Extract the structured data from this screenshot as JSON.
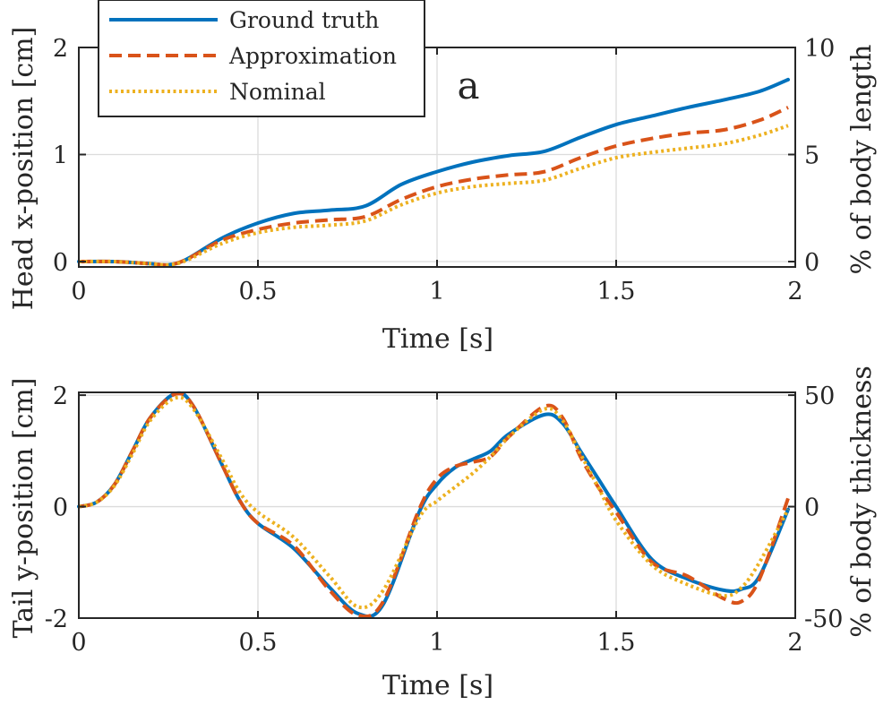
{
  "chart_data": [
    {
      "type": "line",
      "panel_label": "a",
      "xlabel": "Time [s]",
      "ylabel": "Head x-position [cm]",
      "ylabel_right": "% of body length",
      "xlim": [
        0,
        2
      ],
      "ylim": [
        -0.05,
        2
      ],
      "ylim_right": [
        -0.25,
        10
      ],
      "xticks": [
        0,
        0.5,
        1,
        1.5,
        2
      ],
      "xtick_labels": [
        "0",
        "0.5",
        "1",
        "1.5",
        "2"
      ],
      "yticks": [
        0,
        1,
        2
      ],
      "ytick_labels": [
        "0",
        "1",
        "2"
      ],
      "yticks_right": [
        0,
        5,
        10
      ],
      "ytick_labels_right": [
        "0",
        "5",
        "10"
      ],
      "grid": true,
      "legend": {
        "location": "top-left",
        "entries": [
          "Ground truth",
          "Approximation",
          "Nominal"
        ]
      },
      "series": [
        {
          "name": "Ground truth",
          "color": "#0072BD",
          "style": "solid",
          "x": [
            0,
            0.1,
            0.2,
            0.25,
            0.3,
            0.4,
            0.5,
            0.6,
            0.7,
            0.8,
            0.9,
            1.0,
            1.1,
            1.2,
            1.3,
            1.4,
            1.5,
            1.6,
            1.7,
            1.8,
            1.9,
            1.98
          ],
          "y": [
            0,
            0,
            -0.02,
            -0.03,
            0.02,
            0.22,
            0.36,
            0.45,
            0.48,
            0.52,
            0.72,
            0.84,
            0.93,
            0.99,
            1.03,
            1.16,
            1.28,
            1.36,
            1.44,
            1.51,
            1.59,
            1.7
          ]
        },
        {
          "name": "Approximation",
          "color": "#D95319",
          "style": "dashed",
          "x": [
            0,
            0.1,
            0.2,
            0.25,
            0.3,
            0.4,
            0.5,
            0.6,
            0.7,
            0.8,
            0.9,
            1.0,
            1.1,
            1.2,
            1.3,
            1.4,
            1.5,
            1.6,
            1.7,
            1.8,
            1.9,
            1.98
          ],
          "y": [
            0,
            0,
            -0.02,
            -0.03,
            0.02,
            0.2,
            0.3,
            0.36,
            0.39,
            0.42,
            0.58,
            0.7,
            0.77,
            0.81,
            0.84,
            0.97,
            1.08,
            1.15,
            1.2,
            1.23,
            1.32,
            1.44
          ]
        },
        {
          "name": "Nominal",
          "color": "#EDB120",
          "style": "dotted",
          "x": [
            0,
            0.1,
            0.2,
            0.25,
            0.3,
            0.4,
            0.5,
            0.6,
            0.7,
            0.8,
            0.9,
            1.0,
            1.1,
            1.2,
            1.3,
            1.4,
            1.5,
            1.6,
            1.7,
            1.8,
            1.9,
            1.98
          ],
          "y": [
            0,
            0,
            -0.02,
            -0.03,
            0.01,
            0.17,
            0.27,
            0.32,
            0.34,
            0.38,
            0.53,
            0.64,
            0.7,
            0.73,
            0.76,
            0.87,
            0.97,
            1.02,
            1.06,
            1.1,
            1.18,
            1.27
          ]
        }
      ]
    },
    {
      "type": "line",
      "xlabel": "Time [s]",
      "ylabel": "Tail y-position [cm]",
      "ylabel_right": "% of body thickness",
      "xlim": [
        0,
        2
      ],
      "ylim": [
        -2,
        2.05
      ],
      "ylim_right": [
        -50,
        51.25
      ],
      "xticks": [
        0,
        0.5,
        1,
        1.5,
        2
      ],
      "xtick_labels": [
        "0",
        "0.5",
        "1",
        "1.5",
        "2"
      ],
      "yticks": [
        -2,
        0,
        2
      ],
      "ytick_labels": [
        "-2",
        "0",
        "2"
      ],
      "yticks_right": [
        -50,
        0,
        50
      ],
      "ytick_labels_right": [
        "-50",
        "0",
        "50"
      ],
      "grid": true,
      "series": [
        {
          "name": "Ground truth",
          "color": "#0072BD",
          "style": "solid",
          "x": [
            0,
            0.05,
            0.1,
            0.15,
            0.2,
            0.27,
            0.32,
            0.4,
            0.45,
            0.5,
            0.6,
            0.7,
            0.78,
            0.85,
            0.95,
            1.0,
            1.05,
            1.1,
            1.15,
            1.2,
            1.3,
            1.35,
            1.4,
            1.45,
            1.5,
            1.6,
            1.7,
            1.8,
            1.85,
            1.9,
            1.98
          ],
          "y": [
            0,
            0.08,
            0.4,
            1.0,
            1.6,
            2.03,
            1.8,
            0.75,
            0.1,
            -0.3,
            -0.75,
            -1.45,
            -1.92,
            -1.75,
            -0.1,
            0.4,
            0.7,
            0.85,
            1.0,
            1.3,
            1.65,
            1.5,
            1.0,
            0.5,
            0.0,
            -0.95,
            -1.3,
            -1.5,
            -1.48,
            -1.25,
            -0.05
          ]
        },
        {
          "name": "Approximation",
          "color": "#D95319",
          "style": "dashed",
          "x": [
            0,
            0.05,
            0.1,
            0.15,
            0.2,
            0.27,
            0.32,
            0.4,
            0.45,
            0.5,
            0.6,
            0.7,
            0.78,
            0.85,
            0.95,
            1.0,
            1.05,
            1.1,
            1.15,
            1.2,
            1.3,
            1.35,
            1.4,
            1.45,
            1.5,
            1.6,
            1.7,
            1.8,
            1.85,
            1.9,
            1.98
          ],
          "y": [
            0,
            0.08,
            0.4,
            1.0,
            1.6,
            2.02,
            1.8,
            0.75,
            0.1,
            -0.3,
            -0.7,
            -1.5,
            -1.95,
            -1.7,
            -0.05,
            0.5,
            0.72,
            0.8,
            0.9,
            1.25,
            1.8,
            1.6,
            0.9,
            0.35,
            -0.1,
            -1.0,
            -1.25,
            -1.65,
            -1.7,
            -1.3,
            0.15
          ]
        },
        {
          "name": "Nominal",
          "color": "#EDB120",
          "style": "dotted",
          "x": [
            0,
            0.05,
            0.1,
            0.15,
            0.2,
            0.27,
            0.32,
            0.4,
            0.45,
            0.5,
            0.6,
            0.7,
            0.78,
            0.85,
            0.95,
            1.0,
            1.05,
            1.1,
            1.15,
            1.2,
            1.3,
            1.35,
            1.4,
            1.45,
            1.5,
            1.6,
            1.7,
            1.8,
            1.85,
            1.9,
            1.98
          ],
          "y": [
            0,
            0.08,
            0.38,
            0.95,
            1.55,
            1.95,
            1.75,
            0.85,
            0.25,
            -0.1,
            -0.55,
            -1.25,
            -1.8,
            -1.5,
            -0.2,
            0.1,
            0.35,
            0.6,
            0.9,
            1.25,
            1.75,
            1.55,
            0.95,
            0.35,
            -0.25,
            -1.05,
            -1.4,
            -1.6,
            -1.45,
            -1.0,
            -0.05
          ]
        }
      ]
    }
  ]
}
